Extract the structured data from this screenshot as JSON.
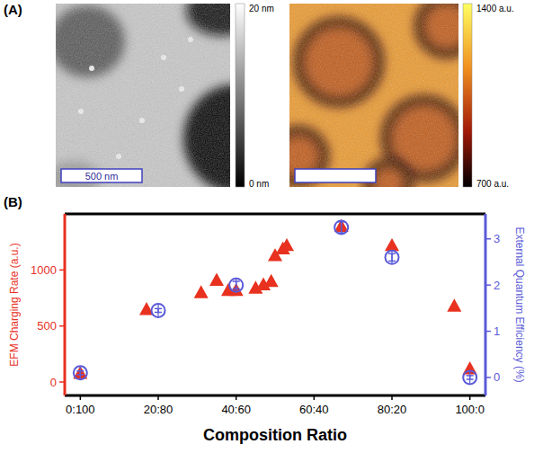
{
  "panel_a": {
    "label": "(A)",
    "images": [
      {
        "colorbar_max": "20 nm",
        "colorbar_min": "0 nm",
        "scale_bar": "500 nm"
      },
      {
        "colorbar_max": "1400 a.u.",
        "colorbar_min": "700 a.u."
      }
    ]
  },
  "chart_data": {
    "type": "scatter",
    "panel_label": "(B)",
    "x_label": "Composition Ratio",
    "y_label": "EFM Charging Rate (a.u.)",
    "y2_label": "External Quantum Efficiency (%)",
    "xlim": [
      -4,
      104
    ],
    "xticks": [
      {
        "value": 0,
        "label": "0:100"
      },
      {
        "value": 20,
        "label": "20:80"
      },
      {
        "value": 40,
        "label": "40:60"
      },
      {
        "value": 60,
        "label": "60:40"
      },
      {
        "value": 80,
        "label": "80:20"
      },
      {
        "value": 100,
        "label": "100:0"
      }
    ],
    "ylim": [
      -120,
      1500
    ],
    "yticks": [
      0,
      500,
      1000
    ],
    "y2lim": [
      -0.39,
      3.54
    ],
    "y2ticks": [
      0,
      1,
      2,
      3
    ],
    "grid": false,
    "series": [
      {
        "color": "#e8311f",
        "marker": "triangle",
        "x": [
          0,
          17,
          31,
          35,
          38,
          40,
          45,
          47,
          49,
          50,
          52,
          53,
          67,
          80,
          96,
          100
        ],
        "values": [
          80,
          650,
          800,
          910,
          820,
          820,
          840,
          870,
          900,
          1130,
          1190,
          1220,
          1390,
          1220,
          680,
          120
        ]
      },
      {
        "color": "#5a5ad8",
        "marker": "circle",
        "axis": "y2",
        "x": [
          0,
          20,
          40,
          67,
          80,
          100
        ],
        "values": [
          0.1,
          1.45,
          2.0,
          3.25,
          2.6,
          0.0
        ],
        "errors": [
          0.04,
          0.04,
          0.08,
          0.12,
          0.08,
          0.04
        ]
      }
    ]
  }
}
